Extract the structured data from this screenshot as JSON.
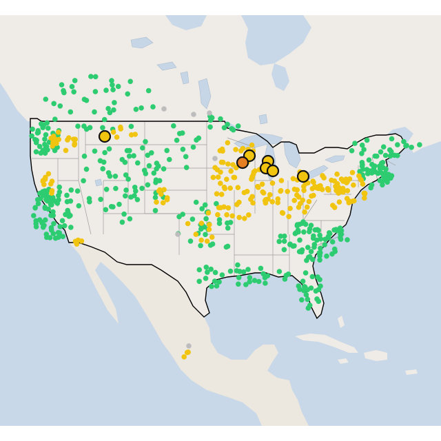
{
  "map": {
    "colors": {
      "background": "#ffffff",
      "ocean": "#c8d8e8",
      "land": "#efebe6",
      "land_dark": "#e6e1d9",
      "mexico_land": "#ece7df",
      "lake": "#c6d6e6",
      "state_border": "#9c9c9c",
      "country_border": "#000000",
      "marker_green": "#2ecc71",
      "marker_yellow": "#f1c40f",
      "marker_orange": "#e67e22",
      "marker_gray": "#bdbdbd",
      "marker_outline": "#111111"
    },
    "marker_categories": [
      "green",
      "yellow",
      "orange",
      "gray"
    ],
    "highlighted_markers": [
      {
        "category": "yellow"
      },
      {
        "category": "yellow"
      },
      {
        "category": "orange"
      },
      {
        "category": "yellow"
      },
      {
        "category": "yellow"
      },
      {
        "category": "yellow"
      },
      {
        "category": "yellow"
      }
    ]
  }
}
